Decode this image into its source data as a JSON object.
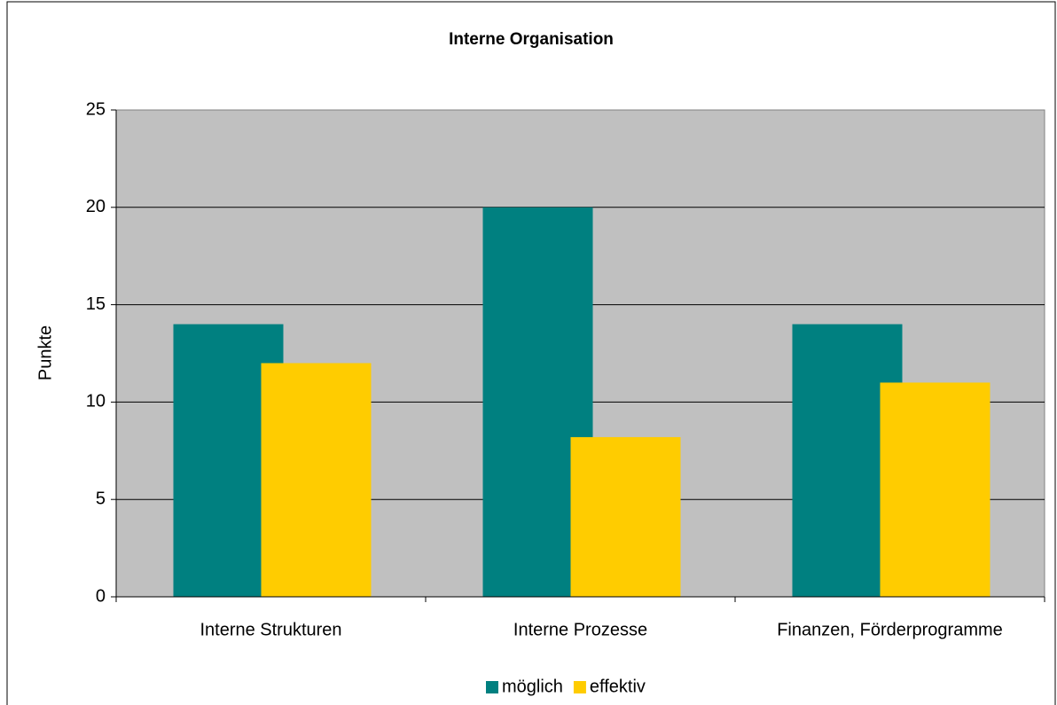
{
  "chart_data": {
    "type": "bar",
    "title": "Interne Organisation",
    "y_label": "Punkte",
    "categories": [
      "Interne Strukturen",
      "Interne Prozesse",
      "Finanzen, Förderprogramme"
    ],
    "series": [
      {
        "name": "möglich",
        "color": "#008080",
        "values": [
          14,
          20,
          14
        ]
      },
      {
        "name": "effektiv",
        "color": "#ffcc00",
        "values": [
          12,
          8.2,
          11
        ]
      }
    ],
    "ylim": [
      0,
      25
    ],
    "yticks": [
      0,
      5,
      10,
      15,
      20,
      25
    ],
    "grid": true,
    "legend": "bottom"
  }
}
